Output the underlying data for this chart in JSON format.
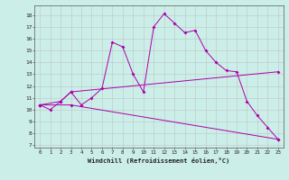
{
  "xlabel": "Windchill (Refroidissement éolien,°C)",
  "background_color": "#cceee8",
  "line_color": "#aa00aa",
  "grid_color": "#bbbbbb",
  "xlim": [
    -0.5,
    23.5
  ],
  "ylim": [
    6.8,
    18.8
  ],
  "xticks": [
    0,
    1,
    2,
    3,
    4,
    5,
    6,
    7,
    8,
    9,
    10,
    11,
    12,
    13,
    14,
    15,
    16,
    17,
    18,
    19,
    20,
    21,
    22,
    23
  ],
  "yticks": [
    7,
    8,
    9,
    10,
    11,
    12,
    13,
    14,
    15,
    16,
    17,
    18
  ],
  "series": [
    [
      0,
      10.4
    ],
    [
      1,
      10.0
    ],
    [
      2,
      10.7
    ],
    [
      3,
      11.5
    ],
    [
      4,
      10.4
    ],
    [
      5,
      11.0
    ],
    [
      6,
      11.8
    ],
    [
      7,
      15.7
    ],
    [
      8,
      15.3
    ],
    [
      9,
      13.0
    ],
    [
      10,
      11.5
    ],
    [
      11,
      17.0
    ],
    [
      12,
      18.1
    ],
    [
      13,
      17.3
    ],
    [
      14,
      16.5
    ],
    [
      15,
      16.7
    ],
    [
      16,
      15.0
    ],
    [
      17,
      14.0
    ],
    [
      18,
      13.3
    ],
    [
      19,
      13.2
    ],
    [
      20,
      10.7
    ],
    [
      21,
      9.5
    ],
    [
      22,
      8.5
    ],
    [
      23,
      7.5
    ]
  ],
  "line2": [
    [
      0,
      10.4
    ],
    [
      2,
      10.7
    ],
    [
      3,
      11.5
    ],
    [
      23,
      13.2
    ]
  ],
  "line3": [
    [
      0,
      10.4
    ],
    [
      3,
      10.4
    ],
    [
      23,
      7.5
    ]
  ]
}
